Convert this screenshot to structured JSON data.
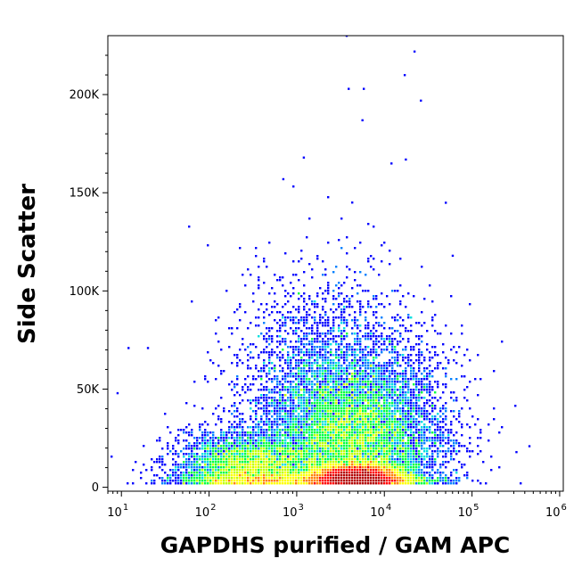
{
  "chart_data": {
    "type": "scatter",
    "title": "",
    "xlabel": "GAPDHS purified / GAM APC",
    "ylabel": "Side Scatter",
    "x_scale": "log",
    "xlim": [
      7,
      1100000
    ],
    "ylim": [
      -2000,
      230000
    ],
    "grid": false,
    "x_ticks": [
      {
        "value": 10,
        "base": "10",
        "exp": "1"
      },
      {
        "value": 100,
        "base": "10",
        "exp": "2"
      },
      {
        "value": 1000,
        "base": "10",
        "exp": "3"
      },
      {
        "value": 10000,
        "base": "10",
        "exp": "4"
      },
      {
        "value": 100000,
        "base": "10",
        "exp": "5"
      },
      {
        "value": 1000000,
        "base": "10",
        "exp": "6"
      }
    ],
    "y_ticks": [
      {
        "value": 0,
        "label": "0"
      },
      {
        "value": 50000,
        "label": "50K"
      },
      {
        "value": 100000,
        "label": "100K"
      },
      {
        "value": 150000,
        "label": "150K"
      },
      {
        "value": 200000,
        "label": "200K"
      }
    ],
    "density_colormap": [
      "#0000ff",
      "#0080ff",
      "#00e0e0",
      "#00ff40",
      "#c0ff00",
      "#ffff00",
      "#ff8000",
      "#ff0000",
      "#b40000"
    ],
    "populations": [
      {
        "x_log10_center": 3.68,
        "y_center": 5000,
        "x_log10_spread": 0.26,
        "y_spread": 3500,
        "weight": 0.35
      },
      {
        "x_log10_center": 3.7,
        "y_center": 22000,
        "x_log10_spread": 0.48,
        "y_spread": 20000,
        "weight": 0.32
      },
      {
        "x_log10_center": 2.5,
        "y_center": 9000,
        "x_log10_spread": 0.42,
        "y_spread": 9000,
        "weight": 0.2
      },
      {
        "x_log10_center": 3.4,
        "y_center": 50000,
        "x_log10_spread": 0.55,
        "y_spread": 28000,
        "weight": 0.13
      }
    ],
    "outlier_points": [
      {
        "x": 3700,
        "y": 230000
      },
      {
        "x": 22000,
        "y": 222000
      },
      {
        "x": 17000,
        "y": 210000
      },
      {
        "x": 26000,
        "y": 197000
      },
      {
        "x": 3900,
        "y": 203000
      },
      {
        "x": 5800,
        "y": 203000
      },
      {
        "x": 5600,
        "y": 187000
      },
      {
        "x": 1200,
        "y": 168000
      },
      {
        "x": 12000,
        "y": 165000
      },
      {
        "x": 17500,
        "y": 167000
      },
      {
        "x": 700,
        "y": 157000
      },
      {
        "x": 50000,
        "y": 145000
      },
      {
        "x": 60000,
        "y": 118000
      },
      {
        "x": 12,
        "y": 71000
      },
      {
        "x": 20,
        "y": 71000
      },
      {
        "x": 320000,
        "y": 18000
      },
      {
        "x": 450000,
        "y": 21000
      },
      {
        "x": 9,
        "y": 48000
      }
    ]
  }
}
